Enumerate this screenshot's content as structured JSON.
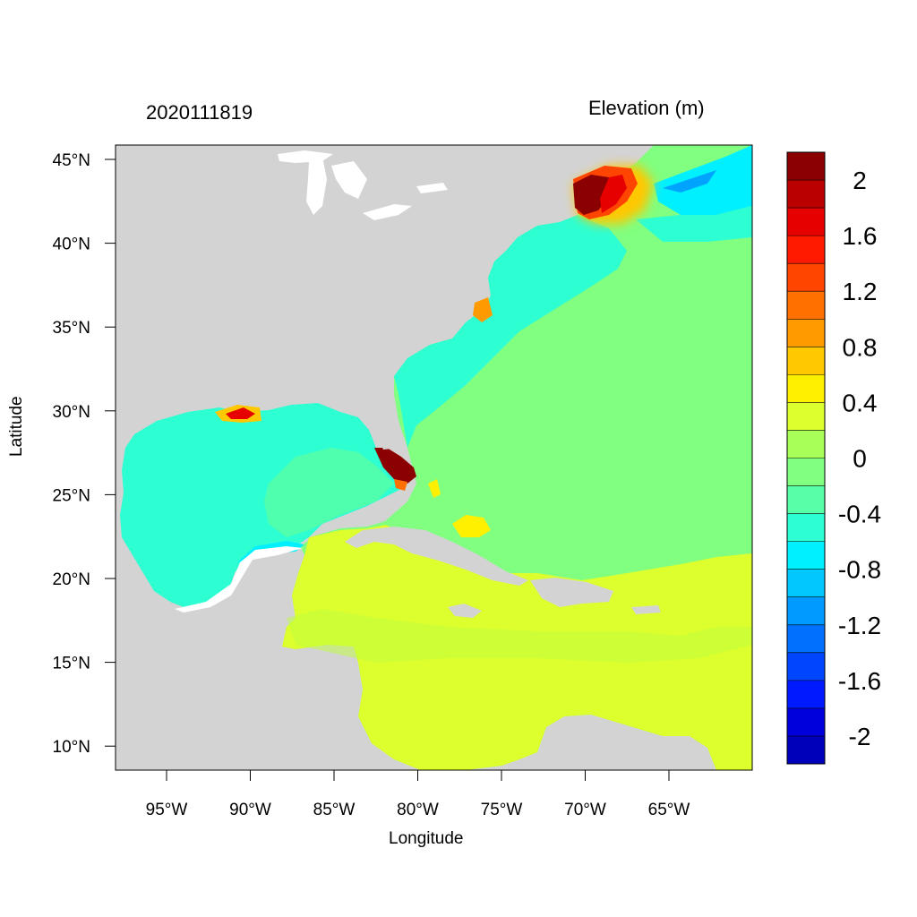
{
  "header": {
    "datetime": "2020111819",
    "variable": "Elevation (m)"
  },
  "axes": {
    "xlabel": "Longitude",
    "ylabel": "Latitude",
    "lon_ticks": [
      "95°W",
      "90°W",
      "85°W",
      "80°W",
      "75°W",
      "70°W",
      "65°W"
    ],
    "lat_ticks": [
      "45°N",
      "40°N",
      "35°N",
      "30°N",
      "25°N",
      "20°N",
      "15°N",
      "10°N"
    ]
  },
  "colorbar": {
    "labels": [
      "2",
      "1.6",
      "1.2",
      "0.8",
      "0.4",
      "0",
      "-0.4",
      "-0.8",
      "-1.2",
      "-1.6",
      "-2"
    ],
    "colors": [
      "#8b0000",
      "#bb0000",
      "#e60000",
      "#ff1a00",
      "#ff4500",
      "#ff7000",
      "#ff9a00",
      "#ffc800",
      "#fff000",
      "#dcff2d",
      "#a8ff58",
      "#80ff80",
      "#57ffa8",
      "#2dffd2",
      "#00f0ff",
      "#00c8ff",
      "#009bff",
      "#0070ff",
      "#0046ff",
      "#001aff",
      "#0000dd",
      "#0000bb"
    ]
  },
  "map_colors": {
    "land": "#d3d3d3",
    "water": "#ffffff"
  }
}
